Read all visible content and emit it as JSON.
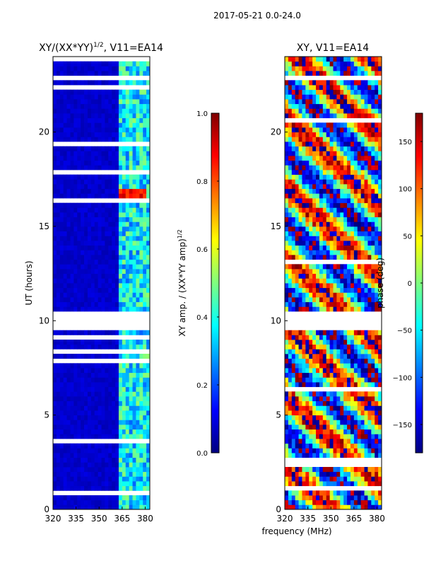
{
  "figure": {
    "suptitle": "2017-05-21 0.0-24.0",
    "shared_xlabel": "frequency (MHz)"
  },
  "chart_data": [
    {
      "type": "heatmap",
      "title": "XY/(XX*YY)",
      "title_superscript": "1/2",
      "title_suffix": ", V11=EA14",
      "xlabel": "",
      "ylabel": "UT (hours)",
      "xlim": [
        320,
        383
      ],
      "ylim": [
        0,
        24
      ],
      "xticks": [
        320,
        335,
        350,
        365,
        380
      ],
      "yticks": [
        0,
        5,
        10,
        15,
        20
      ],
      "colormap": "jet",
      "colorbar": {
        "label": "XY amp. / (XX*YY amp)",
        "label_superscript": "1/2",
        "range": [
          0.0,
          1.0
        ],
        "ticks": [
          "0.0",
          "0.2",
          "0.4",
          "0.6",
          "0.8",
          "1.0"
        ],
        "tick_values": [
          0.0,
          0.2,
          0.4,
          0.6,
          0.8,
          1.0
        ]
      },
      "flagged_time_range_hours": [
        9.6,
        10.6
      ],
      "high_amplitude_band_mhz": [
        363,
        383
      ],
      "strong_features": [
        {
          "ut": [
            16.5,
            17.1
          ],
          "freq_mhz": [
            363,
            381
          ],
          "value": 0.95
        },
        {
          "ut": [
            8.9,
            9.3
          ],
          "freq_mhz": [
            363,
            381
          ],
          "value": 0.65
        }
      ]
    },
    {
      "type": "heatmap",
      "title": "XY, V11=EA14",
      "xlabel": "frequency (MHz)",
      "ylabel": "",
      "xlim": [
        320,
        383
      ],
      "ylim": [
        0,
        24
      ],
      "xticks": [
        320,
        335,
        350,
        365,
        380
      ],
      "yticks": [
        0,
        5,
        10,
        15,
        20
      ],
      "colormap": "jet",
      "colorbar": {
        "label": "phase (deg)",
        "range": [
          -180,
          180
        ],
        "ticks": [
          "−150",
          "−100",
          "−50",
          "0",
          "50",
          "100",
          "150"
        ],
        "tick_values": [
          -150,
          -100,
          -50,
          0,
          50,
          100,
          150
        ]
      },
      "flagged_time_range_hours": [
        9.6,
        10.6
      ]
    }
  ]
}
